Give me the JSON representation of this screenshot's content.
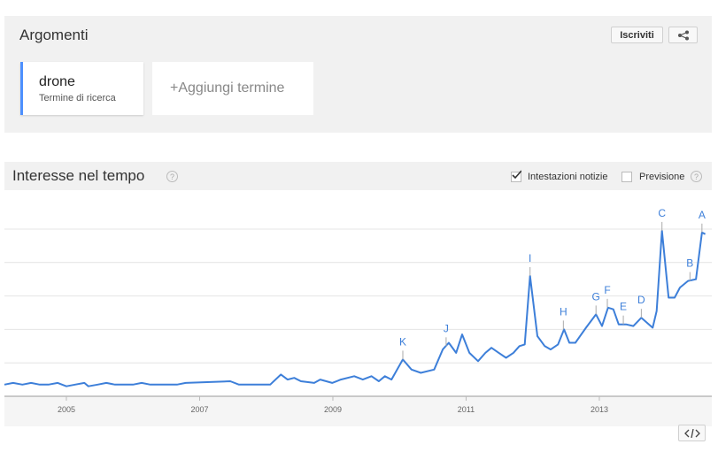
{
  "header": {
    "title": "Argomenti",
    "subscribe": "Iscriviti"
  },
  "terms": {
    "term": "drone",
    "term_type": "Termine di ricerca",
    "add": "+Aggiungi termine"
  },
  "section": {
    "title": "Interesse nel tempo",
    "news_headlines": "Intestazioni notizie",
    "forecast": "Previsione"
  },
  "chart_data": {
    "type": "line",
    "color": "#3d7fd9",
    "x": [
      2004.07,
      2004.2,
      2004.34,
      2004.47,
      2004.6,
      2004.73,
      2004.87,
      2005.0,
      2005.13,
      2005.27,
      2005.33,
      2005.47,
      2005.6,
      2005.73,
      2006.0,
      2006.13,
      2006.26,
      2006.66,
      2006.79,
      2007.46,
      2007.59,
      2008.06,
      2008.22,
      2008.32,
      2008.42,
      2008.52,
      2008.72,
      2008.81,
      2008.99,
      2009.12,
      2009.32,
      2009.45,
      2009.58,
      2009.69,
      2009.78,
      2009.88,
      2010.05,
      2010.18,
      2010.32,
      2010.52,
      2010.65,
      2010.74,
      2010.85,
      2010.94,
      2011.05,
      2011.18,
      2011.29,
      2011.38,
      2011.49,
      2011.6,
      2011.71,
      2011.8,
      2011.88,
      2011.96,
      2012.07,
      2012.18,
      2012.27,
      2012.38,
      2012.47,
      2012.55,
      2012.64,
      2012.8,
      2012.95,
      2013.04,
      2013.13,
      2013.21,
      2013.29,
      2013.4,
      2013.51,
      2013.63,
      2013.8,
      2013.86,
      2013.94,
      2014.04,
      2014.13,
      2014.21,
      2014.33,
      2014.45,
      2014.54,
      2014.59
    ],
    "values": [
      7,
      8,
      7,
      8,
      7,
      7,
      8,
      6,
      7,
      8,
      6,
      7,
      8,
      7,
      7,
      8,
      7,
      7,
      8,
      9,
      7,
      7,
      13,
      10,
      11,
      9,
      8,
      10,
      8,
      10,
      12,
      10,
      12,
      9,
      12,
      10,
      22,
      16,
      14,
      16,
      28,
      32,
      26,
      37,
      26,
      21,
      26,
      29,
      26,
      23,
      26,
      30,
      31,
      72,
      36,
      30,
      28,
      31,
      40,
      32,
      32,
      41,
      49,
      42,
      53,
      52,
      43,
      43,
      42,
      47,
      41,
      51,
      99,
      59,
      59,
      65,
      69,
      70,
      98,
      97
    ],
    "xlim": [
      2004.07,
      2014.595
    ],
    "xticks": [
      2005,
      2007,
      2009,
      2011,
      2013
    ],
    "ylim": [
      0,
      100
    ],
    "yticks": [
      0,
      20,
      40,
      60,
      80,
      100
    ],
    "grid": true,
    "annotations": [
      {
        "label": "A",
        "x": 2014.54,
        "y": 98
      },
      {
        "label": "B",
        "x": 2014.36,
        "y": 69
      },
      {
        "label": "C",
        "x": 2013.94,
        "y": 99
      },
      {
        "label": "D",
        "x": 2013.63,
        "y": 47
      },
      {
        "label": "E",
        "x": 2013.36,
        "y": 43
      },
      {
        "label": "F",
        "x": 2013.12,
        "y": 53
      },
      {
        "label": "G",
        "x": 2012.95,
        "y": 49
      },
      {
        "label": "H",
        "x": 2012.46,
        "y": 40
      },
      {
        "label": "I",
        "x": 2011.96,
        "y": 72
      },
      {
        "label": "J",
        "x": 2010.7,
        "y": 30
      },
      {
        "label": "K",
        "x": 2010.05,
        "y": 22
      }
    ]
  }
}
